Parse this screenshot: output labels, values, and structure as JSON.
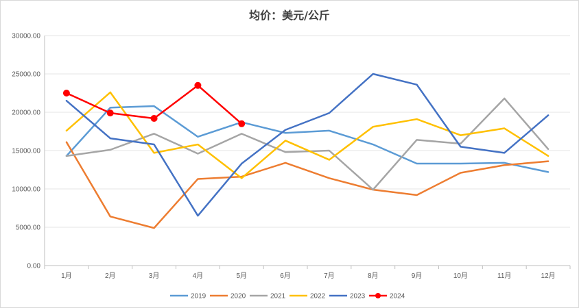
{
  "chart_data": {
    "type": "line",
    "title": "均价：美元/公斤",
    "xlabel": "",
    "ylabel": "",
    "categories": [
      "1月",
      "2月",
      "3月",
      "4月",
      "5月",
      "6月",
      "7月",
      "8月",
      "9月",
      "10月",
      "11月",
      "12月"
    ],
    "ylim": [
      0,
      30000
    ],
    "y_ticks": [
      0,
      5000,
      10000,
      15000,
      20000,
      25000,
      30000
    ],
    "y_tick_labels": [
      "0.00",
      "5000.00",
      "10000.00",
      "15000.00",
      "20000.00",
      "25000.00",
      "30000.00"
    ],
    "grid": true,
    "legend_position": "bottom",
    "series": [
      {
        "name": "2019",
        "color": "#5B9BD5",
        "markers": false,
        "values": [
          14300,
          20600,
          20800,
          16800,
          18700,
          17300,
          17600,
          15800,
          13300,
          13300,
          13400,
          12200
        ]
      },
      {
        "name": "2020",
        "color": "#ED7D31",
        "markers": false,
        "values": [
          16100,
          6400,
          4900,
          11300,
          11600,
          13400,
          11400,
          9900,
          9200,
          12100,
          13100,
          13600
        ]
      },
      {
        "name": "2021",
        "color": "#A5A5A5",
        "markers": false,
        "values": [
          14300,
          15100,
          17200,
          14600,
          17200,
          14800,
          15000,
          9900,
          16400,
          15900,
          21800,
          15200
        ]
      },
      {
        "name": "2022",
        "color": "#FFC000",
        "markers": false,
        "values": [
          17600,
          22600,
          14700,
          15800,
          11400,
          16300,
          13800,
          18100,
          19100,
          17000,
          17900,
          14300
        ]
      },
      {
        "name": "2023",
        "color": "#4472C4",
        "markers": false,
        "values": [
          21500,
          16600,
          15800,
          6500,
          13300,
          17700,
          19900,
          25000,
          23600,
          15500,
          14700,
          19600
        ]
      },
      {
        "name": "2024",
        "color": "#FF0000",
        "markers": true,
        "values": [
          22500,
          19900,
          19200,
          23500,
          18500,
          null,
          null,
          null,
          null,
          null,
          null,
          null
        ]
      }
    ]
  }
}
